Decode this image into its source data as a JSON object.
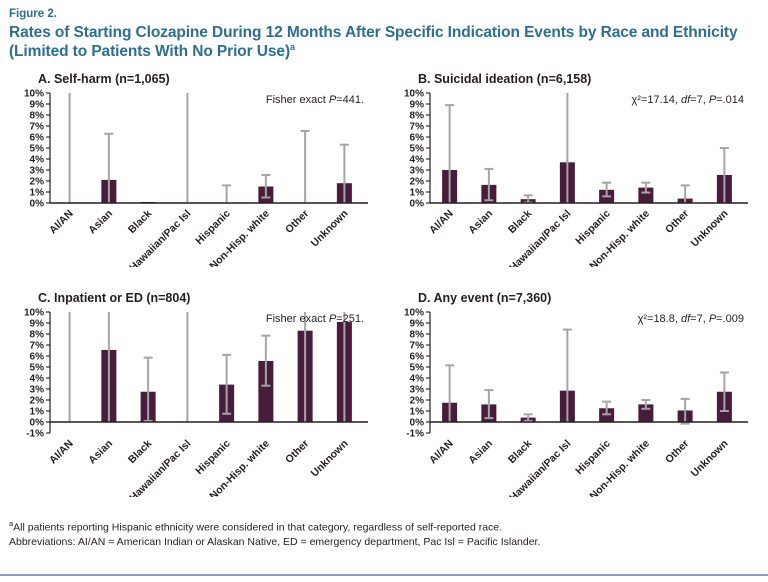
{
  "figure": {
    "label": "Figure 2.",
    "title": "Rates of Starting Clozapine During 12 Months After Specific Indication Events by Race and Ethnicity",
    "title_line2": "(Limited to Patients With No Prior Use)",
    "title_footnote_marker": "a"
  },
  "colors": {
    "accent": "#2c6f93",
    "bar": "#481c3b",
    "error_bar": "#a6a4a5",
    "axis": "#231f20",
    "text": "#231f20",
    "footer_rule": "#84a0c4"
  },
  "categories": [
    "AI/AN",
    "Asian",
    "Black",
    "Hawaiian/Pac Isl",
    "Hispanic",
    "Non-Hisp. white",
    "Other",
    "Unknown"
  ],
  "chart_data": [
    {
      "id": "A",
      "type": "bar",
      "title": "A. Self-harm (n=1,065)",
      "annotation": "Fisher exact P=441.",
      "annotation_segments": [
        {
          "text": "Fisher exact ",
          "italic": false
        },
        {
          "text": "P",
          "italic": true
        },
        {
          "text": "=441.",
          "italic": false
        }
      ],
      "xlabel": "",
      "ylabel": "",
      "ytick_suffix": "%",
      "ylim": [
        0,
        10
      ],
      "categories": [
        "AI/AN",
        "Asian",
        "Black",
        "Hawaiian/Pac Isl",
        "Hispanic",
        "Non-Hisp. white",
        "Other",
        "Unknown"
      ],
      "bars": [
        {
          "category": "AI/AN",
          "value": 0,
          "ci_low": 0,
          "ci_high": 10,
          "ci_high_truncated": true
        },
        {
          "category": "Asian",
          "value": 2.1,
          "ci_low": 0,
          "ci_high": 6.3,
          "ci_high_truncated": false
        },
        {
          "category": "Black",
          "value": 0.07,
          "ci_low": null,
          "ci_high": null,
          "ci_high_truncated": false
        },
        {
          "category": "Hawaiian/Pac Isl",
          "value": 0,
          "ci_low": 0,
          "ci_high": 10,
          "ci_high_truncated": true
        },
        {
          "category": "Hispanic",
          "value": 0,
          "ci_low": 0,
          "ci_high": 1.6,
          "ci_high_truncated": false
        },
        {
          "category": "Non-Hisp. white",
          "value": 1.5,
          "ci_low": 0.5,
          "ci_high": 2.55,
          "ci_high_truncated": false
        },
        {
          "category": "Other",
          "value": 0,
          "ci_low": 0,
          "ci_high": 6.55,
          "ci_high_truncated": false
        },
        {
          "category": "Unknown",
          "value": 1.8,
          "ci_low": 0,
          "ci_high": 5.3,
          "ci_high_truncated": false
        }
      ]
    },
    {
      "id": "B",
      "type": "bar",
      "title": "B. Suicidal ideation (n=6,158)",
      "annotation": "χ²=17.14, df=7, P=.014",
      "annotation_segments": [
        {
          "text": "χ²=17.14, ",
          "italic": false
        },
        {
          "text": "df",
          "italic": true
        },
        {
          "text": "=7, ",
          "italic": false
        },
        {
          "text": "P",
          "italic": true
        },
        {
          "text": "=.014",
          "italic": false
        }
      ],
      "xlabel": "",
      "ylabel": "",
      "ytick_suffix": "%",
      "ylim": [
        0,
        10
      ],
      "categories": [
        "AI/AN",
        "Asian",
        "Black",
        "Hawaiian/Pac Isl",
        "Hispanic",
        "Non-Hisp. white",
        "Other",
        "Unknown"
      ],
      "bars": [
        {
          "category": "AI/AN",
          "value": 3.0,
          "ci_low": 0,
          "ci_high": 8.9,
          "ci_high_truncated": false
        },
        {
          "category": "Asian",
          "value": 1.65,
          "ci_low": 0.25,
          "ci_high": 3.1,
          "ci_high_truncated": false
        },
        {
          "category": "Black",
          "value": 0.35,
          "ci_low": 0.05,
          "ci_high": 0.7,
          "ci_high_truncated": false
        },
        {
          "category": "Hawaiian/Pac Isl",
          "value": 3.7,
          "ci_low": 0,
          "ci_high": 10,
          "ci_high_truncated": true
        },
        {
          "category": "Hispanic",
          "value": 1.2,
          "ci_low": 0.6,
          "ci_high": 1.85,
          "ci_high_truncated": false
        },
        {
          "category": "Non-Hisp. white",
          "value": 1.4,
          "ci_low": 0.95,
          "ci_high": 1.85,
          "ci_high_truncated": false
        },
        {
          "category": "Other",
          "value": 0.4,
          "ci_low": 0,
          "ci_high": 1.6,
          "ci_high_truncated": false
        },
        {
          "category": "Unknown",
          "value": 2.55,
          "ci_low": 0,
          "ci_high": 5.0,
          "ci_high_truncated": false
        }
      ]
    },
    {
      "id": "C",
      "type": "bar",
      "title": "C. Inpatient or ED (n=804)",
      "annotation": "Fisher exact P=251.",
      "annotation_segments": [
        {
          "text": "Fisher exact ",
          "italic": false
        },
        {
          "text": "P",
          "italic": true
        },
        {
          "text": "=251.",
          "italic": false
        }
      ],
      "xlabel": "",
      "ylabel": "",
      "ytick_suffix": "%",
      "ylim": [
        -1,
        10
      ],
      "categories": [
        "AI/AN",
        "Asian",
        "Black",
        "Hawaiian/Pac Isl",
        "Hispanic",
        "Non-Hisp. white",
        "Other",
        "Unknown"
      ],
      "bars": [
        {
          "category": "AI/AN",
          "value": 0,
          "ci_low": 0,
          "ci_high": 10,
          "ci_high_truncated": true
        },
        {
          "category": "Asian",
          "value": 6.55,
          "ci_low": 0,
          "ci_high": 10,
          "ci_high_truncated": true
        },
        {
          "category": "Black",
          "value": 2.75,
          "ci_low": 0.1,
          "ci_high": 5.85,
          "ci_high_truncated": false
        },
        {
          "category": "Hawaiian/Pac Isl",
          "value": 0,
          "ci_low": 0,
          "ci_high": 10,
          "ci_high_truncated": true
        },
        {
          "category": "Hispanic",
          "value": 3.4,
          "ci_low": 0.75,
          "ci_high": 6.1,
          "ci_high_truncated": false
        },
        {
          "category": "Non-Hisp. white",
          "value": 5.55,
          "ci_low": 3.3,
          "ci_high": 7.85,
          "ci_high_truncated": false
        },
        {
          "category": "Other",
          "value": 8.3,
          "ci_low": 0,
          "ci_high": 10,
          "ci_high_truncated": true
        },
        {
          "category": "Unknown",
          "value": 9.1,
          "ci_low": 0,
          "ci_high": 10,
          "ci_high_truncated": true
        }
      ]
    },
    {
      "id": "D",
      "type": "bar",
      "title": "D. Any event (n=7,360)",
      "annotation": "χ²=18.8, df=7, P=.009",
      "annotation_segments": [
        {
          "text": "χ²=18.8, ",
          "italic": false
        },
        {
          "text": "df",
          "italic": true
        },
        {
          "text": "=7, ",
          "italic": false
        },
        {
          "text": "P",
          "italic": true
        },
        {
          "text": "=.009",
          "italic": false
        }
      ],
      "xlabel": "",
      "ylabel": "",
      "ytick_suffix": "%",
      "ylim": [
        -1,
        10
      ],
      "categories": [
        "AI/AN",
        "Asian",
        "Black",
        "Hawaiian/Pac Isl",
        "Hispanic",
        "Non-Hisp. white",
        "Other",
        "Unknown"
      ],
      "bars": [
        {
          "category": "AI/AN",
          "value": 1.75,
          "ci_low": 0,
          "ci_high": 5.15,
          "ci_high_truncated": false
        },
        {
          "category": "Asian",
          "value": 1.6,
          "ci_low": 0.35,
          "ci_high": 2.9,
          "ci_high_truncated": false
        },
        {
          "category": "Black",
          "value": 0.4,
          "ci_low": 0.1,
          "ci_high": 0.7,
          "ci_high_truncated": false
        },
        {
          "category": "Hawaiian/Pac Isl",
          "value": 2.85,
          "ci_low": 0,
          "ci_high": 8.4,
          "ci_high_truncated": false
        },
        {
          "category": "Hispanic",
          "value": 1.25,
          "ci_low": 0.7,
          "ci_high": 1.85,
          "ci_high_truncated": false
        },
        {
          "category": "Non-Hisp. white",
          "value": 1.6,
          "ci_low": 1.2,
          "ci_high": 2.0,
          "ci_high_truncated": false
        },
        {
          "category": "Other",
          "value": 1.05,
          "ci_low": -0.15,
          "ci_high": 2.1,
          "ci_high_truncated": false
        },
        {
          "category": "Unknown",
          "value": 2.75,
          "ci_low": 1.0,
          "ci_high": 4.5,
          "ci_high_truncated": false
        }
      ]
    }
  ],
  "footnotes": {
    "marker": "a",
    "line1": "All patients reporting Hispanic ethnicity were considered in that category, regardless of self-reported race.",
    "line2": "Abbreviations: AI/AN = American Indian or Alaskan Native, ED = emergency department, Pac Isl = Pacific Islander."
  }
}
